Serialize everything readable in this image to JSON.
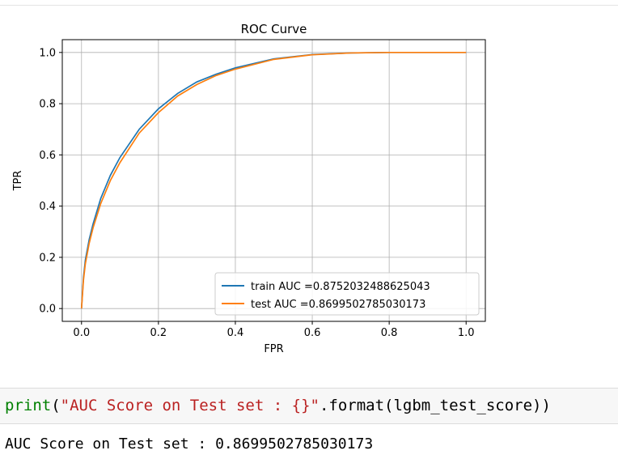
{
  "chart_data": {
    "type": "line",
    "title": "ROC Curve",
    "xlabel": "FPR",
    "ylabel": "TPR",
    "xlim": [
      -0.05,
      1.05
    ],
    "ylim": [
      -0.05,
      1.05
    ],
    "xticks": [
      "0.0",
      "0.2",
      "0.4",
      "0.6",
      "0.8",
      "1.0"
    ],
    "yticks": [
      "0.0",
      "0.2",
      "0.4",
      "0.6",
      "0.8",
      "1.0"
    ],
    "grid": true,
    "legend_position": "lower-right",
    "series": [
      {
        "name": "train AUC =0.8752032488625043",
        "color": "#1f77b4",
        "x": [
          0,
          0.005,
          0.01,
          0.02,
          0.03,
          0.05,
          0.075,
          0.1,
          0.15,
          0.2,
          0.25,
          0.3,
          0.35,
          0.4,
          0.5,
          0.6,
          0.7,
          0.8,
          0.9,
          1.0
        ],
        "y": [
          0,
          0.12,
          0.19,
          0.27,
          0.33,
          0.43,
          0.52,
          0.59,
          0.7,
          0.78,
          0.84,
          0.885,
          0.915,
          0.94,
          0.975,
          0.992,
          0.998,
          1.0,
          1.0,
          1.0
        ]
      },
      {
        "name": "test AUC =0.8699502785030173",
        "color": "#ff7f0e",
        "x": [
          0,
          0.005,
          0.01,
          0.02,
          0.03,
          0.05,
          0.075,
          0.1,
          0.15,
          0.2,
          0.25,
          0.3,
          0.35,
          0.4,
          0.5,
          0.6,
          0.7,
          0.8,
          0.9,
          1.0
        ],
        "y": [
          0,
          0.11,
          0.175,
          0.255,
          0.315,
          0.41,
          0.5,
          0.57,
          0.685,
          0.765,
          0.83,
          0.875,
          0.91,
          0.935,
          0.973,
          0.991,
          0.998,
          1.0,
          1.0,
          1.0
        ]
      }
    ]
  },
  "code": {
    "func": "print",
    "open": "(",
    "string": "\"AUC Score on Test set : {}\"",
    "rest": ".format(lgbm_test_score))"
  },
  "output": {
    "text": "AUC Score on Test set : 0.8699502785030173"
  }
}
